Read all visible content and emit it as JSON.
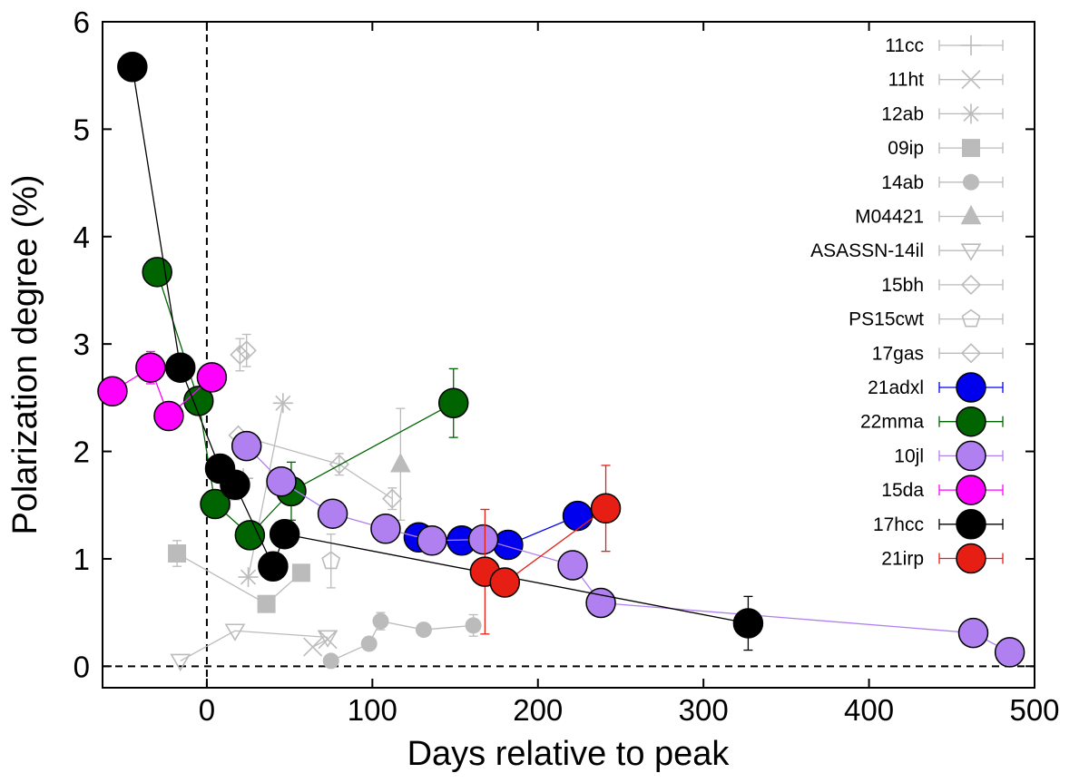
{
  "chart_data": {
    "type": "scatter",
    "title": "",
    "xlabel": "Days relative to peak",
    "ylabel": "Polarization degree (%)",
    "xlim": [
      -63,
      500
    ],
    "ylim": [
      -0.2,
      6
    ],
    "xticks": [
      0,
      100,
      200,
      300,
      400,
      500
    ],
    "yticks": [
      0,
      1,
      2,
      3,
      4,
      5,
      6
    ],
    "grid": false,
    "legend_position": "top-right",
    "reference_lines": [
      {
        "orientation": "vertical",
        "value": 0,
        "style": "dashed"
      },
      {
        "orientation": "horizontal",
        "value": 0,
        "style": "dashed"
      }
    ],
    "series": [
      {
        "name": "11cc",
        "color": "#bbbbbb",
        "marker": "plus",
        "points": [
          {
            "x": 14,
            "y": 1.55
          },
          {
            "x": 22,
            "y": 1.75
          }
        ]
      },
      {
        "name": "11ht",
        "color": "#bbbbbb",
        "marker": "cross",
        "points": [
          {
            "x": 64,
            "y": 0.18
          },
          {
            "x": 73,
            "y": 0.25
          }
        ]
      },
      {
        "name": "12ab",
        "color": "#bbbbbb",
        "marker": "star",
        "points": [
          {
            "x": 25,
            "y": 0.83
          },
          {
            "x": 46,
            "y": 2.45
          }
        ]
      },
      {
        "name": "09ip",
        "color": "#bbbbbb",
        "marker": "square",
        "points": [
          {
            "x": -18,
            "y": 1.05,
            "err": 0.12
          },
          {
            "x": 36,
            "y": 0.58
          },
          {
            "x": 57,
            "y": 0.87
          }
        ]
      },
      {
        "name": "14ab",
        "color": "#bbbbbb",
        "marker": "circle",
        "points": [
          {
            "x": 75,
            "y": 0.05
          },
          {
            "x": 98,
            "y": 0.21
          },
          {
            "x": 105,
            "y": 0.42,
            "err": 0.08
          },
          {
            "x": 131,
            "y": 0.34
          },
          {
            "x": 161,
            "y": 0.38,
            "err": 0.1
          }
        ]
      },
      {
        "name": "M04421",
        "color": "#bbbbbb",
        "marker": "triangle-up",
        "points": [
          {
            "x": 117,
            "y": 1.88,
            "err": 0.52
          }
        ]
      },
      {
        "name": "ASASSN-14il",
        "color": "#bbbbbb",
        "marker": "triangle-down",
        "points": [
          {
            "x": -16,
            "y": 0.05
          },
          {
            "x": 17,
            "y": 0.33
          },
          {
            "x": 73,
            "y": 0.27
          }
        ]
      },
      {
        "name": "15bh",
        "color": "#bbbbbb",
        "marker": "diamond",
        "points": [
          {
            "x": 19,
            "y": 2.15
          },
          {
            "x": 80,
            "y": 1.88,
            "err": 0.1
          },
          {
            "x": 112,
            "y": 1.56,
            "err": 0.1
          }
        ]
      },
      {
        "name": "PS15cwt",
        "color": "#bbbbbb",
        "marker": "pentagon",
        "points": [
          {
            "x": 75,
            "y": 0.98,
            "err": 0.25
          }
        ]
      },
      {
        "name": "17gas",
        "color": "#bbbbbb",
        "marker": "diamond",
        "points": [
          {
            "x": 20,
            "y": 2.9,
            "err": 0.15
          },
          {
            "x": 24,
            "y": 2.94,
            "err": 0.15
          }
        ]
      },
      {
        "name": "21adxl",
        "color": "#0000ee",
        "marker": "big-circle",
        "points": [
          {
            "x": 128,
            "y": 1.2
          },
          {
            "x": 154,
            "y": 1.17
          },
          {
            "x": 182,
            "y": 1.13
          },
          {
            "x": 224,
            "y": 1.4
          }
        ]
      },
      {
        "name": "22mma",
        "color": "#006400",
        "marker": "big-circle",
        "points": [
          {
            "x": -30,
            "y": 3.67
          },
          {
            "x": -5,
            "y": 2.47
          },
          {
            "x": 5,
            "y": 1.51
          },
          {
            "x": 26,
            "y": 1.22
          },
          {
            "x": 51,
            "y": 1.63,
            "err": 0.27
          },
          {
            "x": 149,
            "y": 2.45,
            "err": 0.32
          }
        ]
      },
      {
        "name": "10jl",
        "color": "#b07ff0",
        "marker": "big-circle",
        "points": [
          {
            "x": 24,
            "y": 2.05
          },
          {
            "x": 45,
            "y": 1.72
          },
          {
            "x": 76,
            "y": 1.42
          },
          {
            "x": 108,
            "y": 1.28
          },
          {
            "x": 136,
            "y": 1.17
          },
          {
            "x": 167,
            "y": 1.18
          },
          {
            "x": 221,
            "y": 0.94
          },
          {
            "x": 238,
            "y": 0.59
          },
          {
            "x": 463,
            "y": 0.31
          },
          {
            "x": 485,
            "y": 0.13
          }
        ]
      },
      {
        "name": "15da",
        "color": "#ff00ff",
        "marker": "big-circle",
        "points": [
          {
            "x": -57,
            "y": 2.56
          },
          {
            "x": -34,
            "y": 2.78,
            "err": 0.15
          },
          {
            "x": -23,
            "y": 2.33
          },
          {
            "x": 3,
            "y": 2.69
          }
        ]
      },
      {
        "name": "17hcc",
        "color": "#000000",
        "marker": "big-circle",
        "points": [
          {
            "x": -45,
            "y": 5.58
          },
          {
            "x": -16,
            "y": 2.78
          },
          {
            "x": 8,
            "y": 1.84
          },
          {
            "x": 17,
            "y": 1.69
          },
          {
            "x": 40,
            "y": 0.93,
            "err": 0.12
          },
          {
            "x": 47,
            "y": 1.23
          },
          {
            "x": 327,
            "y": 0.4,
            "err": 0.25
          }
        ]
      },
      {
        "name": "21irp",
        "color": "#e61e14",
        "marker": "big-circle",
        "points": [
          {
            "x": 168,
            "y": 0.88,
            "err": 0.58
          },
          {
            "x": 180,
            "y": 0.78
          },
          {
            "x": 241,
            "y": 1.47,
            "err": 0.4
          }
        ]
      }
    ]
  }
}
